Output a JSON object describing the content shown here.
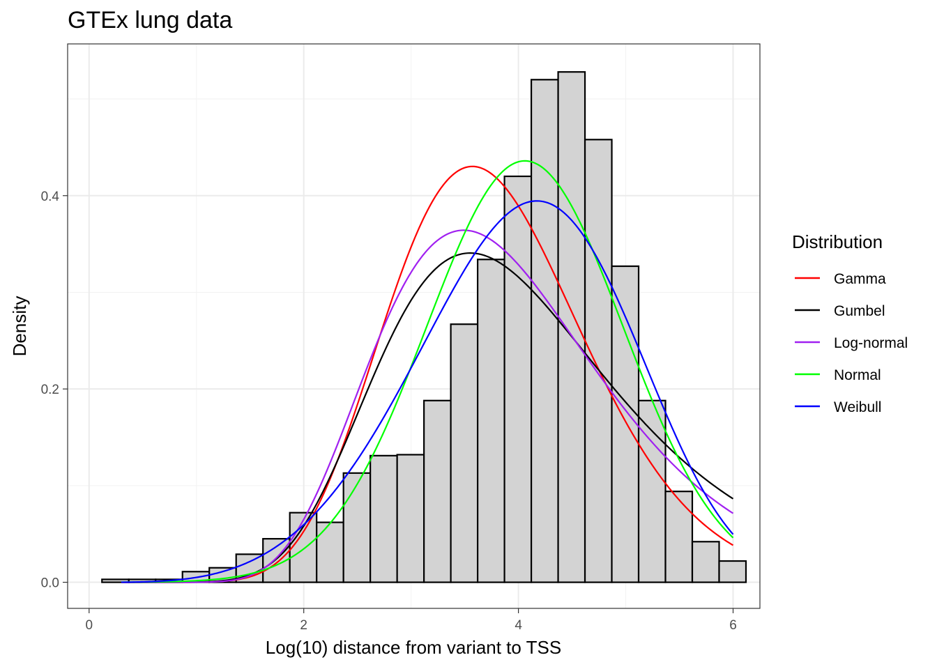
{
  "chart_data": {
    "type": "histogram",
    "title": "GTEx lung data",
    "xlabel": "Log(10) distance from variant to TSS",
    "ylabel": "Density",
    "xlim": [
      -0.2,
      6.25
    ],
    "ylim": [
      -0.027,
      0.557
    ],
    "x_ticks": [
      0,
      2,
      4,
      6
    ],
    "x_tick_labels": [
      "0",
      "2",
      "4",
      "6"
    ],
    "y_ticks": [
      0.0,
      0.2,
      0.4
    ],
    "y_tick_labels": [
      "0.0",
      "0.2",
      "0.4"
    ],
    "grid": true,
    "legend_position": "right",
    "legend_title": "Distribution",
    "histogram": {
      "bin_width": 0.25,
      "first_bin_start": 0.12,
      "fill": "#d3d3d3",
      "stroke": "#000000",
      "densities": [
        0.003,
        0.003,
        0.003,
        0.011,
        0.015,
        0.029,
        0.045,
        0.072,
        0.062,
        0.113,
        0.131,
        0.132,
        0.188,
        0.267,
        0.334,
        0.42,
        0.52,
        0.528,
        0.458,
        0.327,
        0.188,
        0.094,
        0.042,
        0.022
      ]
    },
    "series": [
      {
        "name": "Gamma",
        "color": "#ff0000",
        "dist": "gamma",
        "params": {
          "shape": 16.0,
          "rate": 4.2
        }
      },
      {
        "name": "Gumbel",
        "color": "#000000",
        "dist": "gumbel",
        "params": {
          "mu": 3.55,
          "beta": 1.08
        }
      },
      {
        "name": "Log-normal",
        "color": "#a020f0",
        "dist": "lognormal",
        "params": {
          "mu": 1.34,
          "sigma": 0.3
        }
      },
      {
        "name": "Normal",
        "color": "#00ff00",
        "dist": "normal",
        "params": {
          "mean": 4.06,
          "sd": 0.915
        }
      },
      {
        "name": "Weibull",
        "color": "#0000ff",
        "dist": "weibull",
        "params": {
          "k": 4.6,
          "lambda": 4.4
        }
      }
    ],
    "curve_x_range": [
      0.3,
      6.0
    ]
  }
}
